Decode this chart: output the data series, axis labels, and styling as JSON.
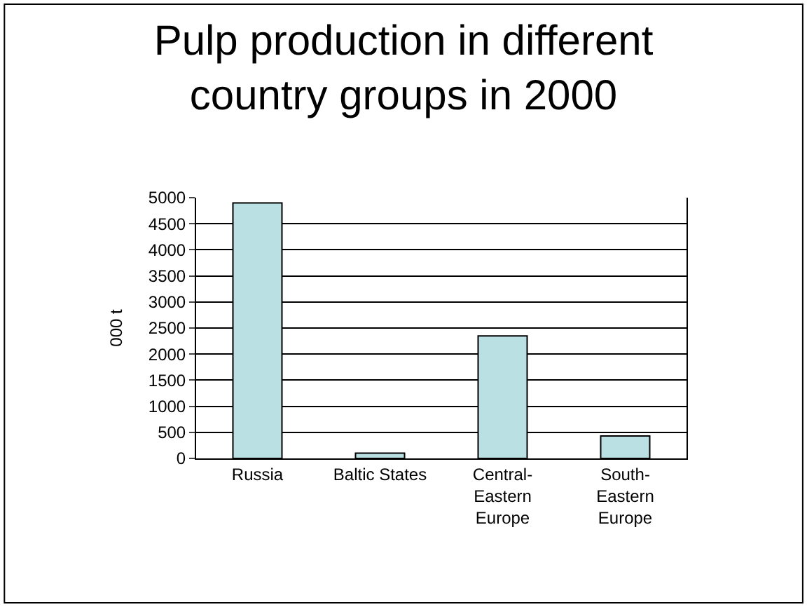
{
  "chart_data": {
    "type": "bar",
    "title": "Pulp production in different\ncountry groups in 2000",
    "ylabel": "000 t",
    "categories": [
      "Russia",
      "Baltic States",
      "Central-\nEastern\nEurope",
      "South-\nEastern\nEurope"
    ],
    "values": [
      4900,
      100,
      2350,
      430
    ],
    "color": "#bbe0e3",
    "ylim": [
      0,
      5000
    ],
    "yticks": [
      0,
      500,
      1000,
      1500,
      2000,
      2500,
      3000,
      3500,
      4000,
      4500,
      5000
    ],
    "grid": "y",
    "legend": false
  }
}
